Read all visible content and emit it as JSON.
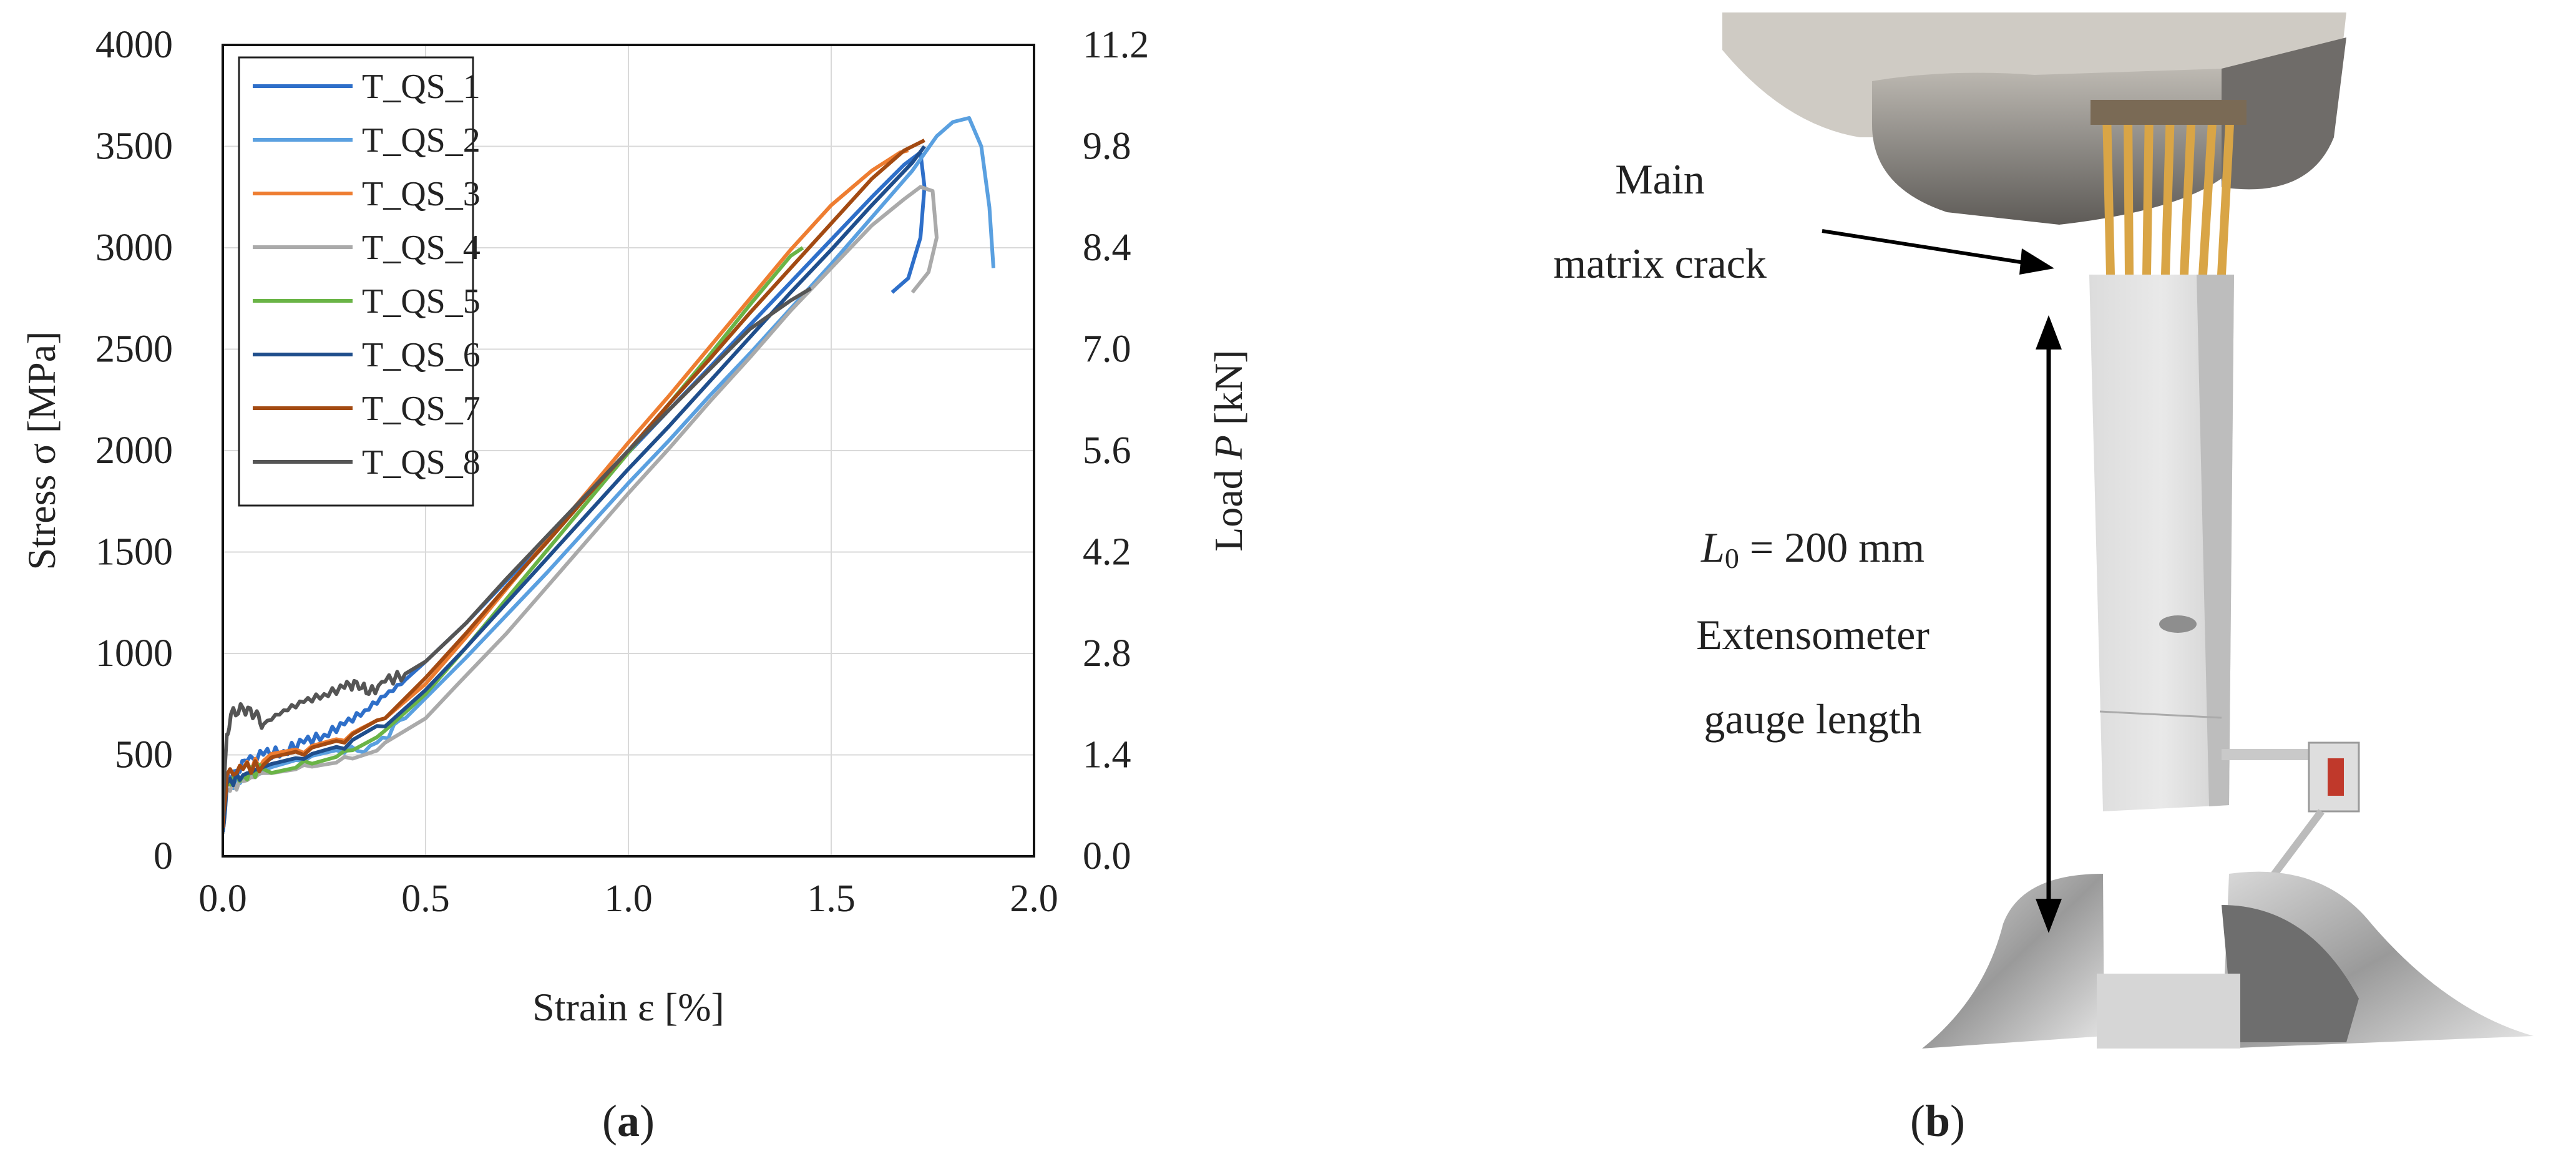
{
  "panels": {
    "a_label": "a",
    "b_label": "b"
  },
  "chart_data": {
    "type": "line",
    "title": "",
    "xlabel": "Strain ε [%]",
    "ylabel_left_main": "Stress σ [MPa]",
    "ylabel_right_prefix": "Load ",
    "ylabel_right_var": "P",
    "ylabel_right_unit": " [kN]",
    "xlim": [
      0,
      2.0
    ],
    "ylim": [
      0,
      4000
    ],
    "ylim_right": [
      0,
      11.2
    ],
    "x_ticks": [
      "0.0",
      "0.5",
      "1.0",
      "1.5",
      "2.0"
    ],
    "y_ticks": [
      "0",
      "500",
      "1000",
      "1500",
      "2000",
      "2500",
      "3000",
      "3500",
      "4000"
    ],
    "y_right_ticks": [
      "0.0",
      "1.4",
      "2.8",
      "4.2",
      "5.6",
      "7.0",
      "8.4",
      "9.8",
      "11.2"
    ],
    "grid": true,
    "legend_position": "top-left",
    "series": [
      {
        "name": "T_QS_1",
        "color": "#2e6fc9",
        "points": [
          [
            0,
            130
          ],
          [
            0.01,
            380
          ],
          [
            0.03,
            420
          ],
          [
            0.06,
            470
          ],
          [
            0.1,
            500
          ],
          [
            0.15,
            520
          ],
          [
            0.2,
            560
          ],
          [
            0.25,
            600
          ],
          [
            0.3,
            650
          ],
          [
            0.35,
            720
          ],
          [
            0.4,
            790
          ],
          [
            0.45,
            870
          ],
          [
            0.5,
            960
          ],
          [
            0.6,
            1150
          ],
          [
            0.7,
            1360
          ],
          [
            0.8,
            1570
          ],
          [
            0.9,
            1780
          ],
          [
            1.0,
            1990
          ],
          [
            1.1,
            2200
          ],
          [
            1.2,
            2410
          ],
          [
            1.3,
            2620
          ],
          [
            1.4,
            2830
          ],
          [
            1.5,
            3040
          ],
          [
            1.6,
            3250
          ],
          [
            1.68,
            3410
          ],
          [
            1.72,
            3470
          ],
          [
            1.73,
            3300
          ],
          [
            1.72,
            3050
          ],
          [
            1.69,
            2850
          ],
          [
            1.65,
            2780
          ]
        ]
      },
      {
        "name": "T_QS_2",
        "color": "#5aa0e0",
        "points": [
          [
            0,
            120
          ],
          [
            0.01,
            350
          ],
          [
            0.05,
            380
          ],
          [
            0.1,
            420
          ],
          [
            0.2,
            470
          ],
          [
            0.3,
            510
          ],
          [
            0.38,
            560
          ],
          [
            0.45,
            680
          ],
          [
            0.5,
            780
          ],
          [
            0.6,
            980
          ],
          [
            0.7,
            1190
          ],
          [
            0.8,
            1400
          ],
          [
            0.9,
            1620
          ],
          [
            1.0,
            1840
          ],
          [
            1.1,
            2050
          ],
          [
            1.2,
            2270
          ],
          [
            1.3,
            2480
          ],
          [
            1.4,
            2700
          ],
          [
            1.5,
            2920
          ],
          [
            1.6,
            3150
          ],
          [
            1.7,
            3380
          ],
          [
            1.76,
            3550
          ],
          [
            1.8,
            3620
          ],
          [
            1.84,
            3640
          ],
          [
            1.87,
            3500
          ],
          [
            1.89,
            3200
          ],
          [
            1.9,
            2900
          ]
        ]
      },
      {
        "name": "T_QS_3",
        "color": "#ee7d31",
        "points": [
          [
            0,
            150
          ],
          [
            0.01,
            400
          ],
          [
            0.05,
            430
          ],
          [
            0.1,
            470
          ],
          [
            0.2,
            510
          ],
          [
            0.3,
            570
          ],
          [
            0.4,
            680
          ],
          [
            0.5,
            850
          ],
          [
            0.6,
            1080
          ],
          [
            0.7,
            1320
          ],
          [
            0.8,
            1560
          ],
          [
            0.9,
            1800
          ],
          [
            1.0,
            2040
          ],
          [
            1.1,
            2270
          ],
          [
            1.2,
            2510
          ],
          [
            1.3,
            2750
          ],
          [
            1.4,
            2990
          ],
          [
            1.5,
            3210
          ],
          [
            1.6,
            3380
          ],
          [
            1.67,
            3470
          ],
          [
            1.69,
            3480
          ]
        ]
      },
      {
        "name": "T_QS_4",
        "color": "#aaaaaa",
        "points": [
          [
            0,
            110
          ],
          [
            0.01,
            330
          ],
          [
            0.05,
            370
          ],
          [
            0.1,
            410
          ],
          [
            0.2,
            450
          ],
          [
            0.3,
            490
          ],
          [
            0.4,
            560
          ],
          [
            0.5,
            680
          ],
          [
            0.58,
            850
          ],
          [
            0.7,
            1100
          ],
          [
            0.8,
            1330
          ],
          [
            0.9,
            1560
          ],
          [
            1.0,
            1790
          ],
          [
            1.1,
            2010
          ],
          [
            1.2,
            2240
          ],
          [
            1.3,
            2460
          ],
          [
            1.4,
            2690
          ],
          [
            1.5,
            2900
          ],
          [
            1.6,
            3110
          ],
          [
            1.68,
            3240
          ],
          [
            1.72,
            3300
          ],
          [
            1.75,
            3280
          ],
          [
            1.76,
            3050
          ],
          [
            1.74,
            2880
          ],
          [
            1.7,
            2780
          ]
        ]
      },
      {
        "name": "T_QS_5",
        "color": "#6ab446",
        "points": [
          [
            0,
            130
          ],
          [
            0.01,
            370
          ],
          [
            0.05,
            400
          ],
          [
            0.1,
            430
          ],
          [
            0.2,
            470
          ],
          [
            0.3,
            520
          ],
          [
            0.4,
            620
          ],
          [
            0.5,
            800
          ],
          [
            0.6,
            1030
          ],
          [
            0.7,
            1270
          ],
          [
            0.8,
            1510
          ],
          [
            0.9,
            1750
          ],
          [
            1.0,
            1990
          ],
          [
            1.1,
            2230
          ],
          [
            1.2,
            2470
          ],
          [
            1.3,
            2720
          ],
          [
            1.4,
            2960
          ],
          [
            1.43,
            3000
          ]
        ]
      },
      {
        "name": "T_QS_6",
        "color": "#1f4e8c",
        "points": [
          [
            0,
            120
          ],
          [
            0.01,
            360
          ],
          [
            0.05,
            400
          ],
          [
            0.1,
            440
          ],
          [
            0.2,
            480
          ],
          [
            0.3,
            530
          ],
          [
            0.4,
            640
          ],
          [
            0.5,
            820
          ],
          [
            0.6,
            1030
          ],
          [
            0.7,
            1250
          ],
          [
            0.8,
            1470
          ],
          [
            0.9,
            1690
          ],
          [
            1.0,
            1910
          ],
          [
            1.1,
            2120
          ],
          [
            1.2,
            2340
          ],
          [
            1.3,
            2560
          ],
          [
            1.4,
            2780
          ],
          [
            1.5,
            2990
          ],
          [
            1.6,
            3210
          ],
          [
            1.7,
            3420
          ],
          [
            1.73,
            3500
          ]
        ]
      },
      {
        "name": "T_QS_7",
        "color": "#a34a12",
        "points": [
          [
            0,
            140
          ],
          [
            0.01,
            400
          ],
          [
            0.05,
            430
          ],
          [
            0.1,
            450
          ],
          [
            0.2,
            500
          ],
          [
            0.3,
            560
          ],
          [
            0.4,
            680
          ],
          [
            0.5,
            880
          ],
          [
            0.6,
            1100
          ],
          [
            0.7,
            1330
          ],
          [
            0.8,
            1550
          ],
          [
            0.9,
            1780
          ],
          [
            1.0,
            2000
          ],
          [
            1.1,
            2230
          ],
          [
            1.2,
            2450
          ],
          [
            1.3,
            2680
          ],
          [
            1.4,
            2900
          ],
          [
            1.5,
            3120
          ],
          [
            1.6,
            3340
          ],
          [
            1.68,
            3480
          ],
          [
            1.73,
            3530
          ]
        ]
      },
      {
        "name": "T_QS_8",
        "color": "#555555",
        "points": [
          [
            0,
            200
          ],
          [
            0.01,
            600
          ],
          [
            0.02,
            700
          ],
          [
            0.05,
            730
          ],
          [
            0.08,
            700
          ],
          [
            0.1,
            650
          ],
          [
            0.15,
            720
          ],
          [
            0.2,
            760
          ],
          [
            0.25,
            800
          ],
          [
            0.3,
            830
          ],
          [
            0.33,
            860
          ],
          [
            0.36,
            800
          ],
          [
            0.4,
            860
          ],
          [
            0.45,
            900
          ],
          [
            0.5,
            960
          ],
          [
            0.6,
            1150
          ],
          [
            0.7,
            1370
          ],
          [
            0.8,
            1580
          ],
          [
            0.9,
            1790
          ],
          [
            1.0,
            2000
          ],
          [
            1.1,
            2200
          ],
          [
            1.2,
            2400
          ],
          [
            1.3,
            2600
          ],
          [
            1.4,
            2740
          ],
          [
            1.45,
            2800
          ]
        ]
      }
    ]
  },
  "photo": {
    "annotation_main_line1": "Main",
    "annotation_main_line2": "matrix crack",
    "annotation_l0_var": "L",
    "annotation_l0_sub": "0",
    "annotation_l0_value": " = 200 mm",
    "annotation_ext_line1": "Extensometer",
    "annotation_ext_line2": "gauge length"
  }
}
